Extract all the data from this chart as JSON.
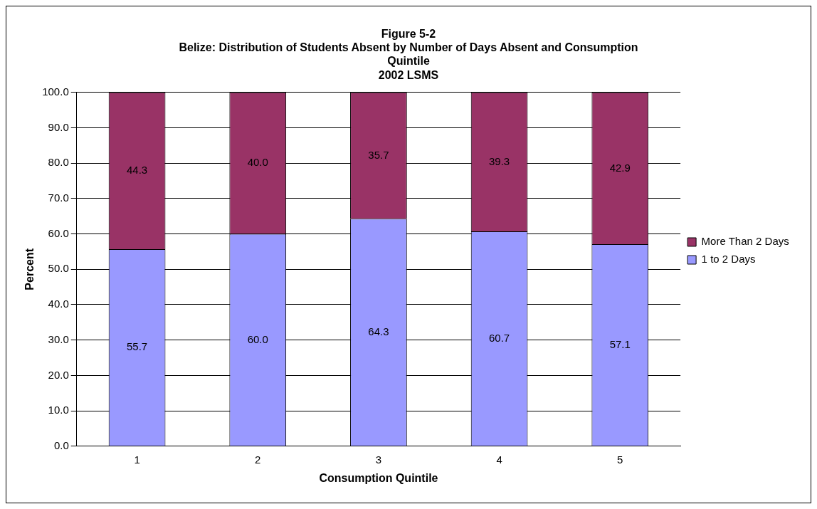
{
  "chart_data": {
    "type": "bar",
    "title": "Figure 5-2\nBelize: Distribution of Students Absent by Number of Days Absent and Consumption\nQuintile\n2002 LSMS",
    "xlabel": "Consumption Quintile",
    "ylabel": "Percent",
    "categories": [
      "1",
      "2",
      "3",
      "4",
      "5"
    ],
    "stacked": true,
    "series": [
      {
        "name": "1 to 2 Days",
        "color": "#9999ff",
        "values": [
          55.7,
          60.0,
          64.3,
          60.7,
          57.1
        ],
        "value_labels": [
          "55.7",
          "60.0",
          "64.3",
          "60.7",
          "57.1"
        ]
      },
      {
        "name": "More Than 2 Days",
        "color": "#993366",
        "values": [
          44.3,
          40.0,
          35.7,
          39.3,
          42.9
        ],
        "value_labels": [
          "44.3",
          "40.0",
          "35.7",
          "39.3",
          "42.9"
        ]
      }
    ],
    "ylim": [
      0,
      100
    ],
    "yticks": [
      {
        "value": 0,
        "label": "0.0"
      },
      {
        "value": 10,
        "label": "10.0"
      },
      {
        "value": 20,
        "label": "20.0"
      },
      {
        "value": 30,
        "label": "30.0"
      },
      {
        "value": 40,
        "label": "40.0"
      },
      {
        "value": 50,
        "label": "50.0"
      },
      {
        "value": 60,
        "label": "60.0"
      },
      {
        "value": 70,
        "label": "70.0"
      },
      {
        "value": 80,
        "label": "80.0"
      },
      {
        "value": 90,
        "label": "90.0"
      },
      {
        "value": 100,
        "label": "100.0"
      }
    ],
    "grid": "y",
    "legend": "right"
  }
}
